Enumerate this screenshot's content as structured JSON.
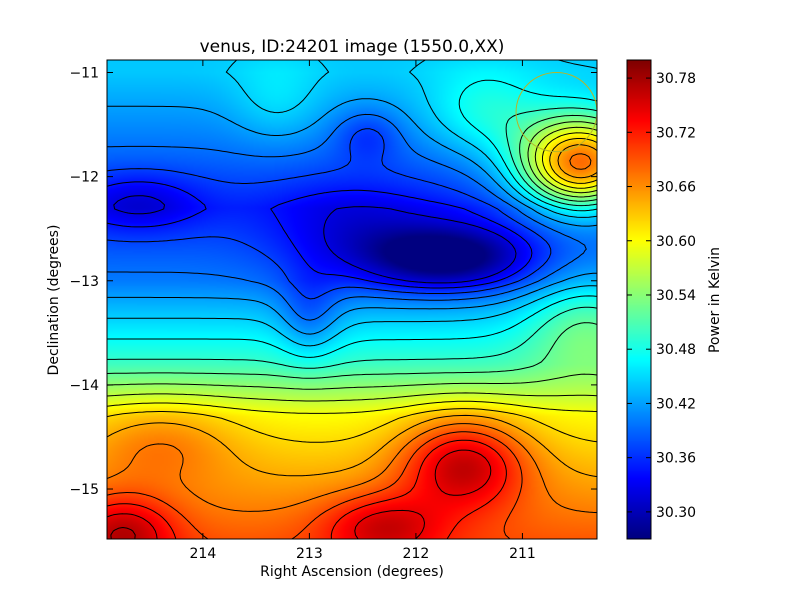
{
  "chart_data": {
    "type": "heatmap",
    "title": "venus, ID:24201 image (1550.0,XX)",
    "xlabel": "Right Ascension (degrees)",
    "ylabel": "Declination (degrees)",
    "colorbar_label": "Power in Kelvin",
    "x_range": [
      214.9,
      210.3
    ],
    "y_range": [
      -15.48,
      -10.88
    ],
    "x_ticks": [
      {
        "value": 214,
        "label": "214"
      },
      {
        "value": 213,
        "label": "213"
      },
      {
        "value": 212,
        "label": "212"
      },
      {
        "value": 211,
        "label": "211"
      }
    ],
    "y_ticks": [
      {
        "value": -11,
        "label": "−11"
      },
      {
        "value": -12,
        "label": "−12"
      },
      {
        "value": -13,
        "label": "−13"
      },
      {
        "value": -14,
        "label": "−14"
      },
      {
        "value": -15,
        "label": "−15"
      }
    ],
    "color_range": [
      30.27,
      30.8
    ],
    "colorbar_ticks": [
      {
        "value": 30.3,
        "label": "30.30"
      },
      {
        "value": 30.36,
        "label": "30.36"
      },
      {
        "value": 30.42,
        "label": "30.42"
      },
      {
        "value": 30.48,
        "label": "30.48"
      },
      {
        "value": 30.54,
        "label": "30.54"
      },
      {
        "value": 30.6,
        "label": "30.60"
      },
      {
        "value": 30.66,
        "label": "30.66"
      },
      {
        "value": 30.72,
        "label": "30.72"
      },
      {
        "value": 30.78,
        "label": "30.78"
      }
    ],
    "colormap": "jet",
    "contour_color": "#000000",
    "field_model": {
      "base": 30.535,
      "lat_gradient": [
        {
          "dec": -11.0,
          "value": 30.44
        },
        {
          "dec": -12.3,
          "value": 30.36
        },
        {
          "dec": -13.0,
          "value": 30.4
        },
        {
          "dec": -13.8,
          "value": 30.5
        },
        {
          "dec": -14.3,
          "value": 30.6
        },
        {
          "dec": -15.5,
          "value": 30.69
        }
      ],
      "features": [
        {
          "ra": 210.45,
          "dec": -11.88,
          "amp": 0.29,
          "sra": 0.42,
          "sdec": 0.32
        },
        {
          "ra": 211.55,
          "dec": -14.75,
          "amp": 0.13,
          "sra": 0.42,
          "sdec": 0.32
        },
        {
          "ra": 212.3,
          "dec": -15.35,
          "amp": 0.08,
          "sra": 0.4,
          "sdec": 0.22
        },
        {
          "ra": 214.75,
          "dec": -15.4,
          "amp": 0.09,
          "sra": 0.35,
          "sdec": 0.25
        },
        {
          "ra": 214.4,
          "dec": -14.55,
          "amp": 0.05,
          "sra": 0.5,
          "sdec": 0.28
        },
        {
          "ra": 211.7,
          "dec": -12.78,
          "amp": -0.14,
          "sra": 0.55,
          "sdec": 0.22
        },
        {
          "ra": 212.6,
          "dec": -12.55,
          "amp": -0.05,
          "sra": 0.55,
          "sdec": 0.35
        },
        {
          "ra": 213.0,
          "dec": -13.35,
          "amp": -0.05,
          "sra": 0.2,
          "sdec": 0.3
        },
        {
          "ra": 214.6,
          "dec": -12.25,
          "amp": -0.05,
          "sra": 0.4,
          "sdec": 0.2
        },
        {
          "ra": 212.45,
          "dec": -11.6,
          "amp": -0.04,
          "sra": 0.22,
          "sdec": 0.18
        },
        {
          "ra": 211.35,
          "dec": -11.4,
          "amp": 0.06,
          "sra": 0.4,
          "sdec": 0.3
        },
        {
          "ra": 210.4,
          "dec": -13.4,
          "amp": 0.07,
          "sra": 0.4,
          "sdec": 0.35
        },
        {
          "ra": 213.3,
          "dec": -11.3,
          "amp": 0.03,
          "sra": 0.3,
          "sdec": 0.3
        }
      ],
      "contour_levels": [
        30.32,
        30.345,
        30.37,
        30.395,
        30.42,
        30.445,
        30.47,
        30.495,
        30.52,
        30.545,
        30.57,
        30.595,
        30.62,
        30.645,
        30.67,
        30.695,
        30.72,
        30.745,
        30.77
      ]
    },
    "annotations": [
      {
        "kind": "circle",
        "ra": 210.68,
        "dec": -11.38,
        "radius_deg": 0.38,
        "color": "#b5b52a"
      }
    ],
    "grid": false,
    "legend": "colorbar-right"
  }
}
